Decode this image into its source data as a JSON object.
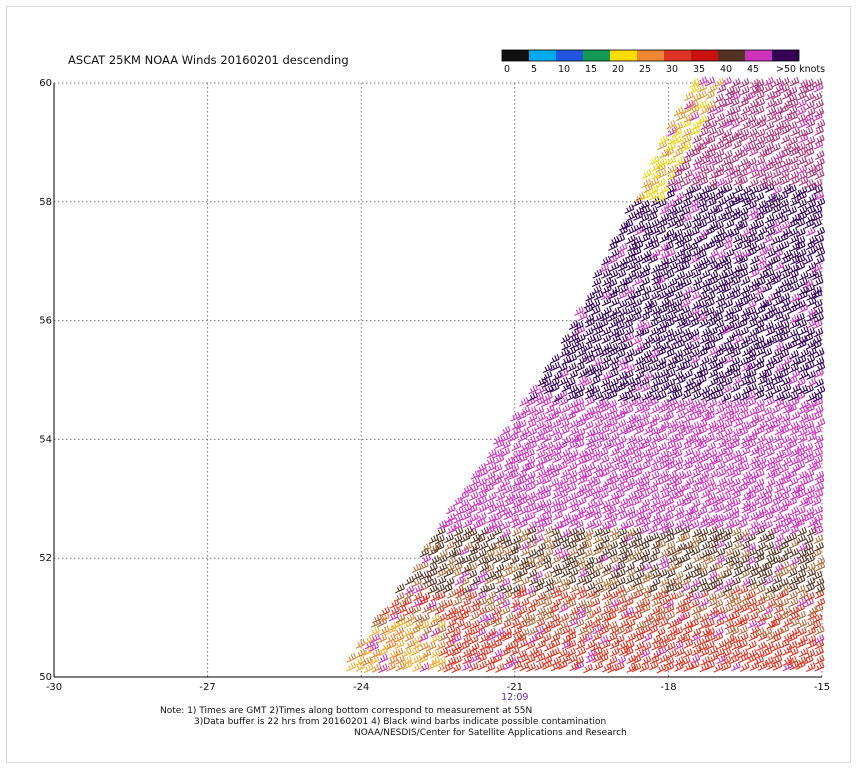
{
  "title": "ASCAT 25KM NOAA Winds 20160201 descending",
  "notes": {
    "line1": "Note: 1) Times are GMT 2)Times along bottom correspond to measurement at 55N",
    "line2": "3)Data buffer is 22 hrs from 20160201 4) Black wind barbs indicate possible contamination",
    "line3": "NOAA/NESDIS/Center for Satellite Applications and Research"
  },
  "colorbar": {
    "labels": [
      "0",
      "5",
      "10",
      "15",
      "20",
      "25",
      "30",
      "35",
      "40",
      "45",
      ">50 knots"
    ],
    "colors": [
      "#111111",
      "#00aaee",
      "#2255dd",
      "#119955",
      "#ffdd00",
      "#ee8833",
      "#dd3322",
      "#cc1111",
      "#553322",
      "#cc33bb",
      "#330055"
    ]
  },
  "chart_data": {
    "type": "scatter",
    "title": "ASCAT 25KM NOAA Winds 20160201 descending",
    "xlim": [
      -30,
      -15
    ],
    "ylim": [
      50,
      60
    ],
    "x_ticks": [
      "-30",
      "-27",
      "-24",
      "-21",
      "-18",
      "-15"
    ],
    "y_ticks": [
      "50",
      "52",
      "54",
      "56",
      "58",
      "60"
    ],
    "time_labels": [
      {
        "x": -21,
        "label": "12:09"
      }
    ],
    "grid": true,
    "swath": {
      "corners": [
        [
          -24.5,
          50
        ],
        [
          -15,
          50
        ],
        [
          -15,
          60
        ],
        [
          -17.6,
          60
        ],
        [
          -20.2,
          55.5
        ]
      ]
    },
    "wind_bands": [
      {
        "lat_from": 50,
        "lat_to": 51.4,
        "speed_knots": 33,
        "color": "#dd3322"
      },
      {
        "lat_from": 51.4,
        "lat_to": 52.4,
        "speed_knots": 38,
        "color": "#553322"
      },
      {
        "lat_from": 52.4,
        "lat_to": 54.6,
        "speed_knots": 43,
        "color": "#cc33bb"
      },
      {
        "lat_from": 54.6,
        "lat_to": 58.2,
        "speed_knots": 52,
        "color": "#330055"
      },
      {
        "lat_from": 58.2,
        "lat_to": 60,
        "speed_knots": 40,
        "color": "#aa3377"
      }
    ],
    "wind_direction_note": "southwesterly barbs"
  }
}
